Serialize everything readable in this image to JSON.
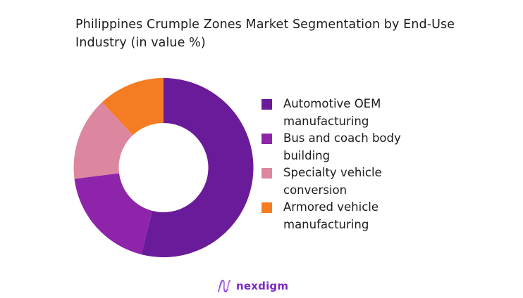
{
  "title": "Philippines Crumple Zones Market Segmentation by End-Use Industry (in value %)",
  "chart_data": {
    "type": "pie",
    "subtype": "donut",
    "title": "Philippines Crumple Zones Market Segmentation by End-Use Industry (in value %)",
    "categories": [
      "Automotive OEM manufacturing",
      "Bus and coach body building",
      "Specialty vehicle conversion",
      "Armored vehicle manufacturing"
    ],
    "values": [
      54,
      19,
      15,
      12
    ],
    "colors": [
      "#6a1b9a",
      "#8e24aa",
      "#dc879f",
      "#f57c22"
    ],
    "legend_position": "right",
    "data_labels": false
  },
  "legend": {
    "items": [
      {
        "label": "Automotive OEM manufacturing",
        "color": "#6a1b9a"
      },
      {
        "label": "Bus and coach body building",
        "color": "#8e24aa"
      },
      {
        "label": "Specialty vehicle conversion",
        "color": "#dc879f"
      },
      {
        "label": "Armored vehicle manufacturing",
        "color": "#f57c22"
      }
    ]
  },
  "branding": {
    "logo_text": "nexdigm",
    "logo_color": "#7b2cc4"
  }
}
